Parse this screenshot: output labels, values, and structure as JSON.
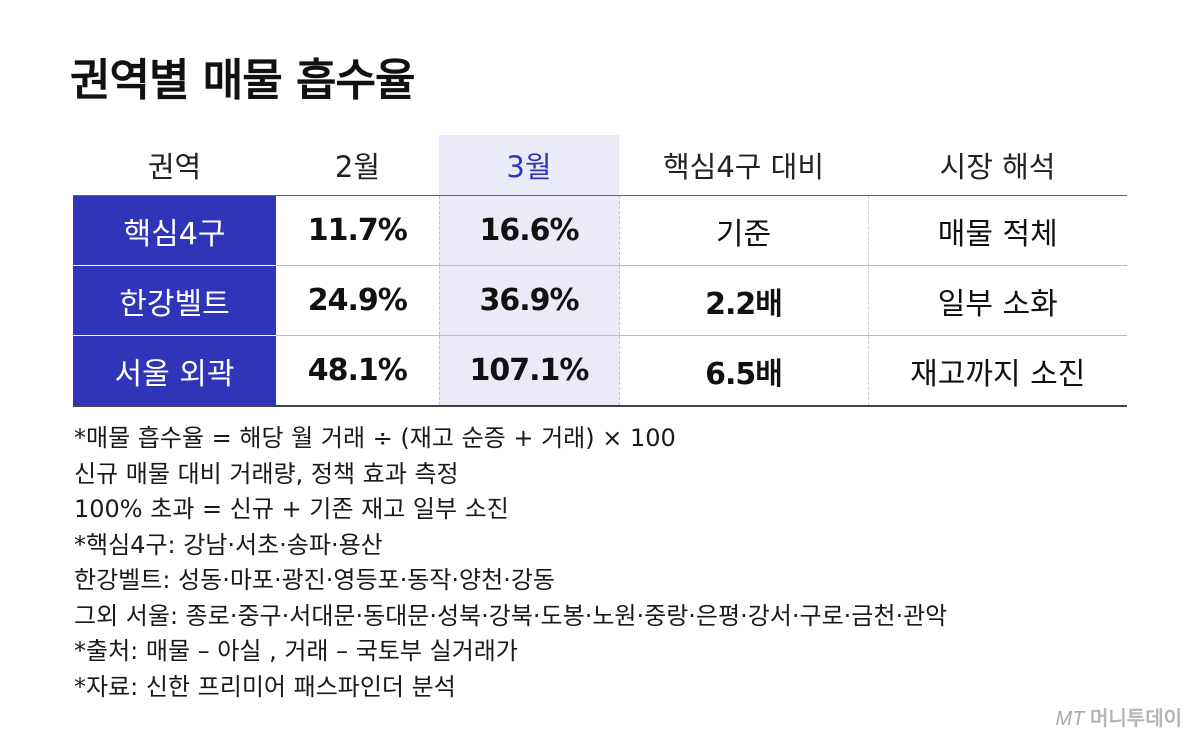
{
  "title": "권역별 매물 흡수율",
  "chart_data": {
    "type": "table",
    "title": "권역별 매물 흡수율",
    "columns": [
      "권역",
      "2월",
      "3월",
      "핵심4구 대비",
      "시장 해석"
    ],
    "highlight_column": "3월",
    "rows": [
      {
        "region": "핵심4구",
        "feb": "11.7%",
        "mar": "16.6%",
        "vs_core": "기준",
        "interpretation": "매물 적체"
      },
      {
        "region": "한강벨트",
        "feb": "24.9%",
        "mar": "36.9%",
        "vs_core": "2.2배",
        "interpretation": "일부 소화"
      },
      {
        "region": "서울 외곽",
        "feb": "48.1%",
        "mar": "107.1%",
        "vs_core": "6.5배",
        "interpretation": "재고까지 소진"
      }
    ],
    "colors": {
      "region_bg": "#2e35b8",
      "highlight_bg": "#ebebf7",
      "highlight_text": "#2e35b8"
    }
  },
  "notes": [
    "*매물 흡수율 = 해당 월 거래 ÷ (재고 순증 + 거래) × 100",
    "신규 매물 대비 거래량, 정책 효과 측정",
    "100% 초과 = 신규 + 기존 재고 일부 소진",
    "*핵심4구: 강남·서초·송파·용산",
    "한강벨트: 성동·마포·광진·영등포·동작·양천·강동",
    "그외 서울: 종로·중구·서대문·동대문·성북·강북·도봉·노원·중랑·은평·강서·구로·금천·관악",
    "*출처: 매물 – 아실 , 거래 – 국토부 실거래가",
    "*자료: 신한 프리미어 패스파인더 분석"
  ],
  "logo": {
    "mark": "MT",
    "text": "머니투데이"
  }
}
